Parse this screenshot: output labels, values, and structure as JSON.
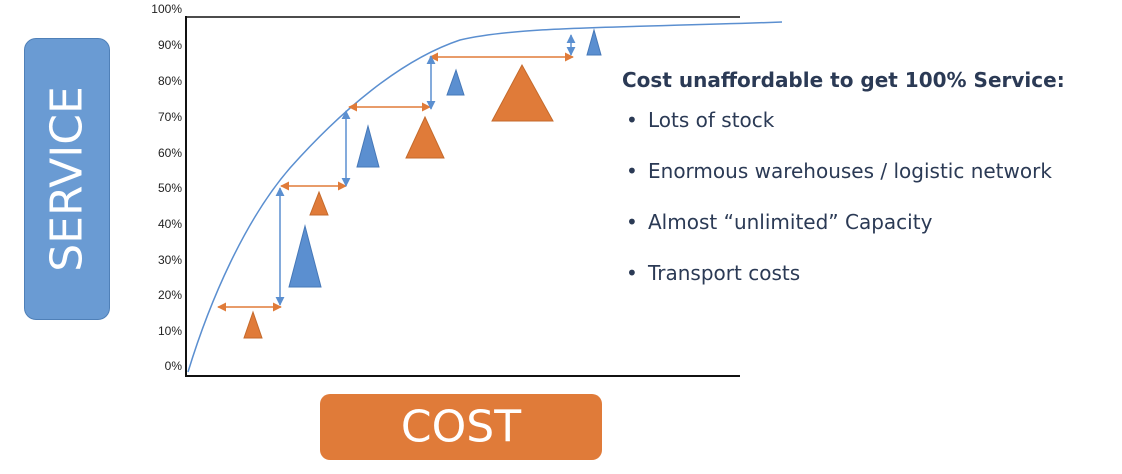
{
  "axis": {
    "y_labels": [
      "0%",
      "10%",
      "20%",
      "30%",
      "40%",
      "50%",
      "60%",
      "70%",
      "80%",
      "90%",
      "100%"
    ]
  },
  "labels": {
    "service": "SERVICE",
    "cost": "COST"
  },
  "notes": {
    "title": "Cost unaffordable to get 100% Service:",
    "bullet_char": "•",
    "items": [
      "Lots of stock",
      "Enormous warehouses / logistic network",
      "Almost “unlimited” Capacity",
      "Transport costs"
    ]
  },
  "colors": {
    "service_box": "#6a9bd3",
    "cost_box": "#e07b39",
    "curve": "#5b8fd0",
    "orange": "#e07b39",
    "blue": "#5b8fd0",
    "text_dark": "#2b3a55"
  }
}
